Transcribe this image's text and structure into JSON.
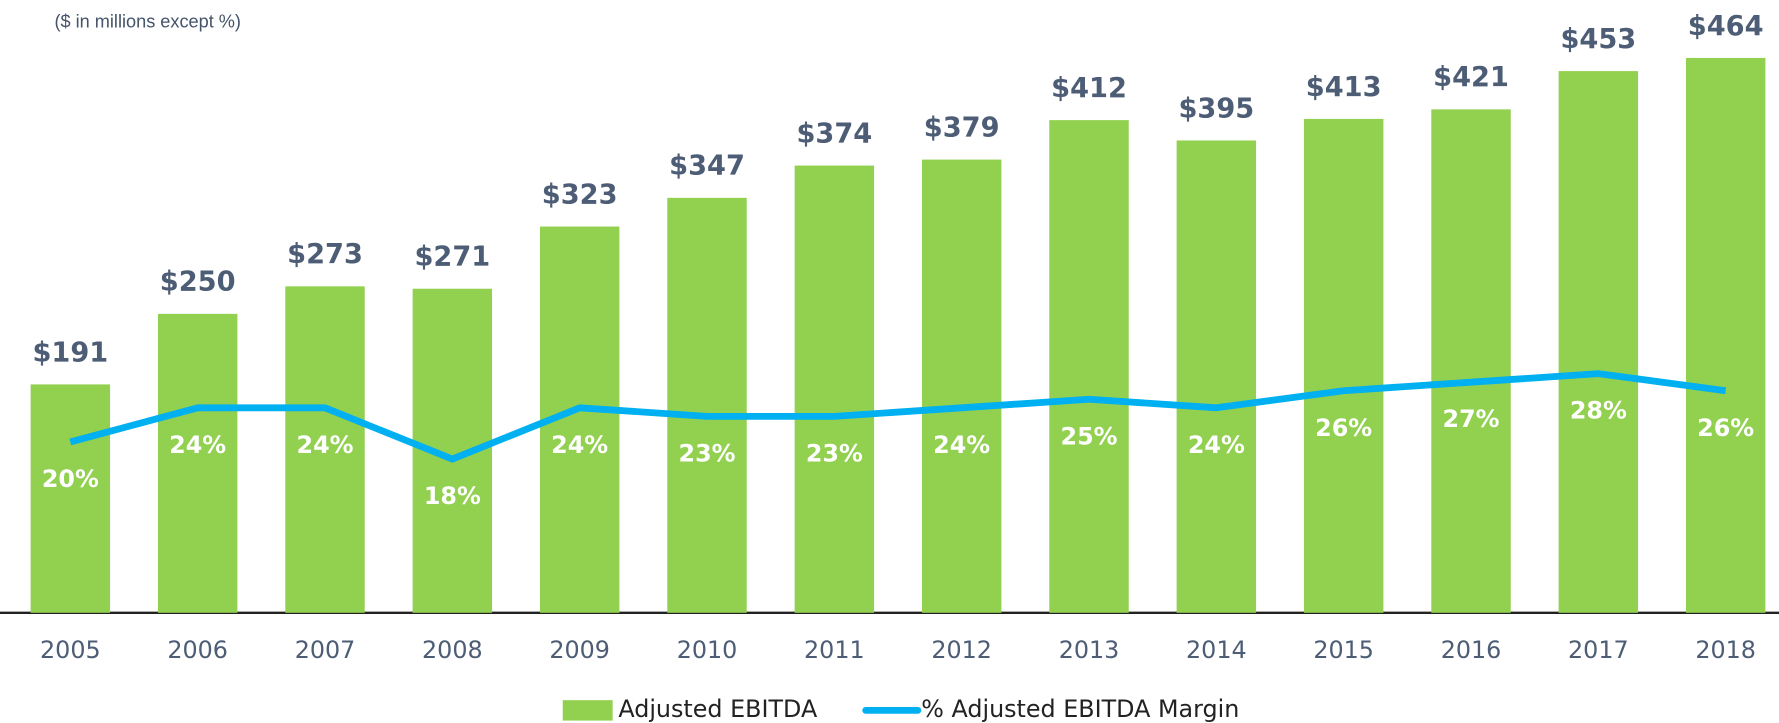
{
  "chart_data": {
    "type": "bar",
    "subtitle": "($ in millions except %)",
    "categories": [
      "2005",
      "2006",
      "2007",
      "2008",
      "2009",
      "2010",
      "2011",
      "2012",
      "2013",
      "2014",
      "2015",
      "2016",
      "2017",
      "2018"
    ],
    "series": [
      {
        "name": "Adjusted EBITDA",
        "type": "bar",
        "color": "#92d050",
        "values": [
          191,
          250,
          273,
          271,
          323,
          347,
          374,
          379,
          412,
          395,
          413,
          421,
          453,
          464
        ],
        "value_labels": [
          "$191",
          "$250",
          "$273",
          "$271",
          "$323",
          "$347",
          "$374",
          "$379",
          "$412",
          "$395",
          "$413",
          "$421",
          "$453",
          "$464"
        ]
      },
      {
        "name": "% Adjusted EBITDA Margin",
        "type": "line",
        "axis": "y2",
        "color": "#00b0f0",
        "values": [
          20,
          24,
          24,
          18,
          24,
          23,
          23,
          24,
          25,
          24,
          26,
          27,
          28,
          26
        ],
        "value_labels": [
          "20%",
          "24%",
          "24%",
          "18%",
          "24%",
          "23%",
          "23%",
          "24%",
          "25%",
          "24%",
          "26%",
          "27%",
          "28%",
          "26%"
        ]
      }
    ],
    "ylim": [
      0,
      500
    ],
    "y2lim": [
      0,
      70
    ]
  }
}
